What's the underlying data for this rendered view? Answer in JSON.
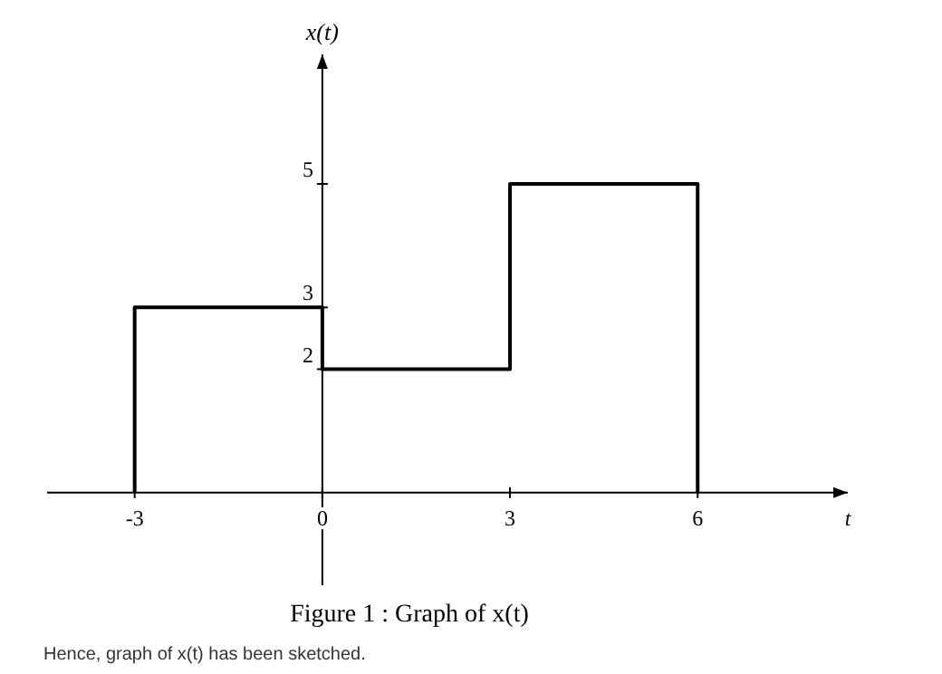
{
  "chart_data": {
    "type": "step",
    "title": "Figure 1 : Graph of x(t)",
    "xlabel": "t",
    "ylabel": "x(t)",
    "x": [
      -3,
      -3,
      0,
      3,
      6
    ],
    "values": [
      0,
      3,
      2,
      5,
      0
    ],
    "color": "#000000",
    "xlim": [
      -4.4,
      8.4
    ],
    "ylim": [
      -1.5,
      7.1
    ],
    "xticks": [
      -3,
      0,
      3,
      6
    ],
    "yticks": [
      2,
      3,
      5
    ],
    "grid": false,
    "annotations": [
      "Hence, graph of x(t) has been sketched."
    ]
  }
}
